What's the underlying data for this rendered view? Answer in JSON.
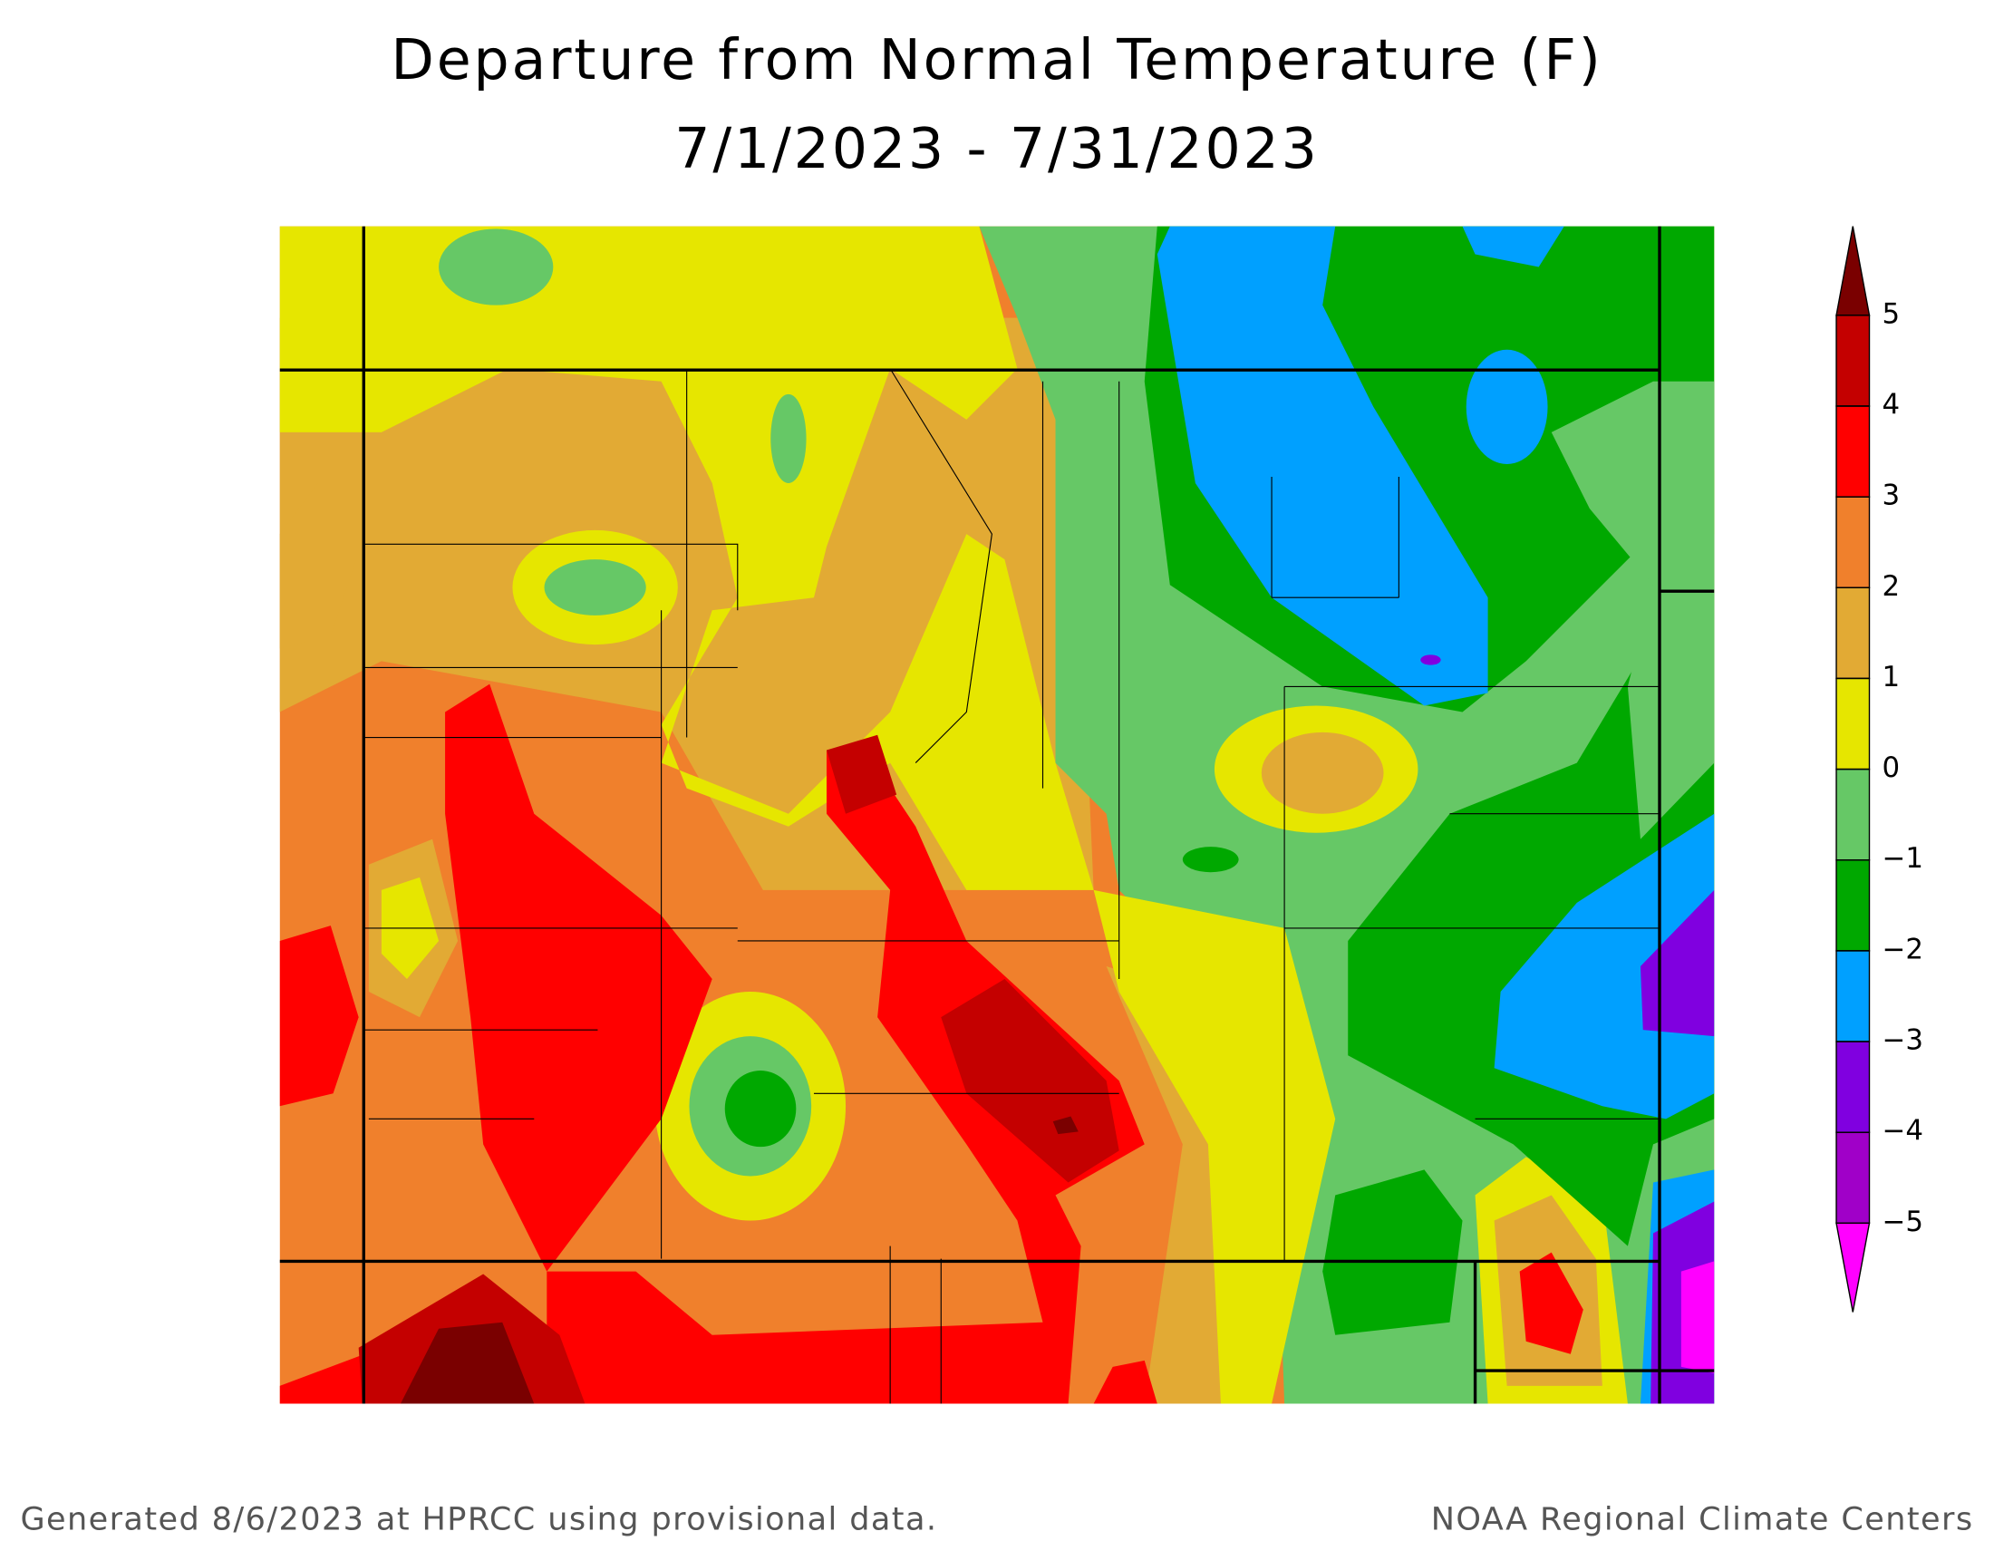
{
  "header": {
    "title": [
      "Departure from Normal Temperature (F)",
      "7/1/2023 - 7/31/2023"
    ]
  },
  "legend": {
    "ticks": [
      5,
      4,
      3,
      2,
      1,
      0,
      {
        "value": -1,
        "label": "−1"
      },
      {
        "value": -2,
        "label": "−2"
      },
      {
        "value": -3,
        "label": "−3"
      },
      {
        "value": -4,
        "label": "−4"
      },
      {
        "value": -5,
        "label": "−5"
      }
    ],
    "colors": [
      "#7a0000",
      "#c40000",
      "#ff0000",
      "#f0802c",
      "#e2aa34",
      "#e6e600",
      "#66c866",
      "#00a800",
      "#00a0ff",
      "#8000e0",
      "#a000c8",
      "#ff00ff"
    ]
  },
  "footer": {
    "left": "Generated 8/6/2023 at HPRCC using provisional data.",
    "right": "NOAA Regional Climate Centers"
  }
}
